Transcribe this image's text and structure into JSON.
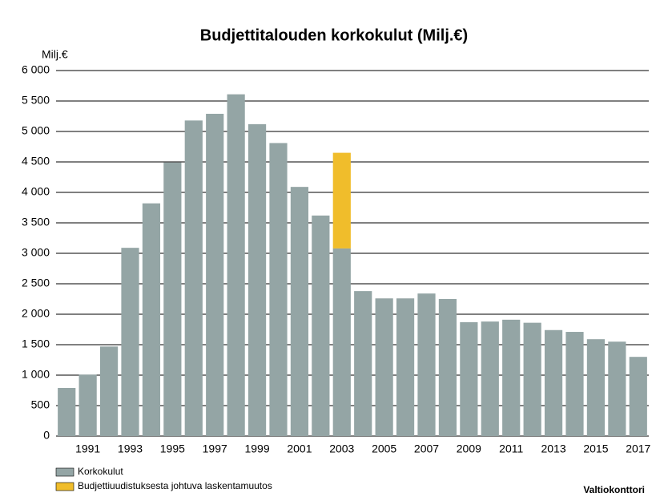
{
  "chart_data": {
    "type": "bar",
    "stacked": true,
    "title": "Budjettitalouden korkokulut (Milj.€)",
    "ylabel": "Milj.€",
    "source": "Valtiokonttori",
    "categories": [
      null,
      "1991",
      null,
      "1993",
      null,
      "1995",
      null,
      "1997",
      null,
      "1999",
      null,
      "2001",
      null,
      "2003",
      null,
      "2005",
      null,
      "2007",
      null,
      "2009",
      null,
      "2011",
      null,
      "2013",
      null,
      "2015",
      null,
      "2017"
    ],
    "series": [
      {
        "name": "Korkokulut",
        "color": "#94a5a5",
        "values": [
          790,
          1010,
          1470,
          3090,
          3820,
          4490,
          5180,
          5290,
          5610,
          5120,
          4810,
          4090,
          3620,
          3080,
          2380,
          2260,
          2260,
          2340,
          2250,
          1870,
          1880,
          1910,
          1860,
          1740,
          1710,
          1590,
          1550,
          1300
        ]
      },
      {
        "name": "Budjettiuudistuksesta johtuva laskentamuutos",
        "color": "#f0bd2b",
        "values": [
          null,
          null,
          null,
          null,
          null,
          null,
          null,
          null,
          null,
          null,
          null,
          null,
          null,
          1570,
          null,
          null,
          null,
          null,
          null,
          null,
          null,
          null,
          null,
          null,
          null,
          null,
          null,
          null
        ]
      }
    ],
    "ylim": [
      0,
      6000
    ],
    "yticks": [
      0,
      500,
      {
        "value": 1000,
        "label": "1 000"
      },
      {
        "value": 1500,
        "label": "1 500"
      },
      {
        "value": 2000,
        "label": "2 000"
      },
      {
        "value": 2500,
        "label": "2 500"
      },
      {
        "value": 3000,
        "label": "3 000"
      },
      {
        "value": 3500,
        "label": "3 500"
      },
      {
        "value": 4000,
        "label": "4 000"
      },
      {
        "value": 4500,
        "label": "4 500"
      },
      {
        "value": 5000,
        "label": "5 000"
      },
      {
        "value": 5500,
        "label": "5 500"
      },
      {
        "value": 6000,
        "label": "6 000"
      }
    ],
    "grid": true
  }
}
